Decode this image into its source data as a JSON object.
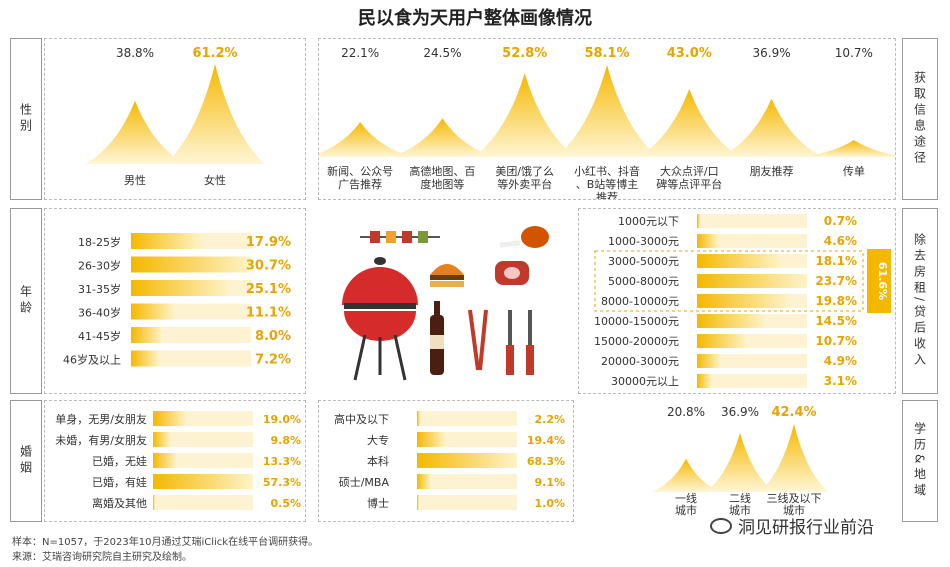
{
  "title": "民以食为天用户整体画像情况",
  "colors": {
    "gold": "#f5b800",
    "light": "#fde9a6",
    "accent": "#e8a400"
  },
  "side_labels": {
    "gender": "性别",
    "age": "年龄",
    "marriage": "婚姻",
    "info": "获取信息途径",
    "income": "除去房租/贷后收入",
    "edu_city": "学历&地域"
  },
  "income_bracket_label": "61.6%",
  "footer": {
    "line1": "样本：N=1057，于2023年10月通过艾瑞iClick在线平台调研获得。",
    "line2": "来源：艾瑞咨询研究院自主研究及绘制。"
  },
  "watermark": "洞见研报行业前沿",
  "chart_data": [
    {
      "id": "gender",
      "type": "area",
      "categories": [
        "男性",
        "女性"
      ],
      "values": [
        38.8,
        61.2
      ],
      "value_labels": [
        "38.8%",
        "61.2%"
      ],
      "unit": "%"
    },
    {
      "id": "info",
      "type": "area",
      "categories": [
        "新闻、公众号广告推荐",
        "高德地图、百度地图等",
        "美团/饿了么等外卖平台",
        "小红书、抖音、B站等博主推荐",
        "大众点评/口碑等点评平台",
        "朋友推荐",
        "传单"
      ],
      "values": [
        22.1,
        24.5,
        52.8,
        58.1,
        43.0,
        36.9,
        10.7
      ],
      "value_labels": [
        "22.1%",
        "24.5%",
        "52.8%",
        "58.1%",
        "43.0%",
        "36.9%",
        "10.7%"
      ],
      "highlight": [
        2,
        3,
        4
      ],
      "unit": "%"
    },
    {
      "id": "age",
      "type": "bar",
      "categories": [
        "18-25岁",
        "26-30岁",
        "31-35岁",
        "36-40岁",
        "41-45岁",
        "46岁及以上"
      ],
      "values": [
        17.9,
        30.7,
        25.1,
        11.1,
        8.0,
        7.2
      ],
      "value_labels": [
        "17.9%",
        "30.7%",
        "25.1%",
        "11.1%",
        "8.0%",
        "7.2%"
      ],
      "unit": "%"
    },
    {
      "id": "income",
      "type": "bar",
      "categories": [
        "1000元以下",
        "1000-3000元",
        "3000-5000元",
        "5000-8000元",
        "8000-10000元",
        "10000-15000元",
        "15000-20000元",
        "20000-3000元",
        "30000元以上"
      ],
      "values": [
        0.7,
        4.6,
        18.1,
        23.7,
        19.8,
        14.5,
        10.7,
        4.9,
        3.1
      ],
      "value_labels": [
        "0.7%",
        "4.6%",
        "18.1%",
        "23.7%",
        "19.8%",
        "14.5%",
        "10.7%",
        "4.9%",
        "3.1%"
      ],
      "unit": "%"
    },
    {
      "id": "marriage",
      "type": "bar",
      "categories": [
        "单身，无男/女朋友",
        "未婚，有男/女朋友",
        "已婚，无娃",
        "已婚，有娃",
        "离婚及其他"
      ],
      "values": [
        19.0,
        9.8,
        13.3,
        57.3,
        0.5
      ],
      "value_labels": [
        "19.0%",
        "9.8%",
        "13.3%",
        "57.3%",
        "0.5%"
      ],
      "unit": "%"
    },
    {
      "id": "education",
      "type": "bar",
      "categories": [
        "高中及以下",
        "大专",
        "本科",
        "硕士/MBA",
        "博士"
      ],
      "values": [
        2.2,
        19.4,
        68.3,
        9.1,
        1.0
      ],
      "value_labels": [
        "2.2%",
        "19.4%",
        "68.3%",
        "9.1%",
        "1.0%"
      ],
      "unit": "%"
    },
    {
      "id": "city",
      "type": "area",
      "categories": [
        "一线城市",
        "二线城市",
        "三线及以下城市"
      ],
      "values": [
        20.8,
        36.9,
        42.4
      ],
      "value_labels": [
        "20.8%",
        "36.9%",
        "42.4%"
      ],
      "highlight": [
        2
      ],
      "unit": "%"
    }
  ]
}
